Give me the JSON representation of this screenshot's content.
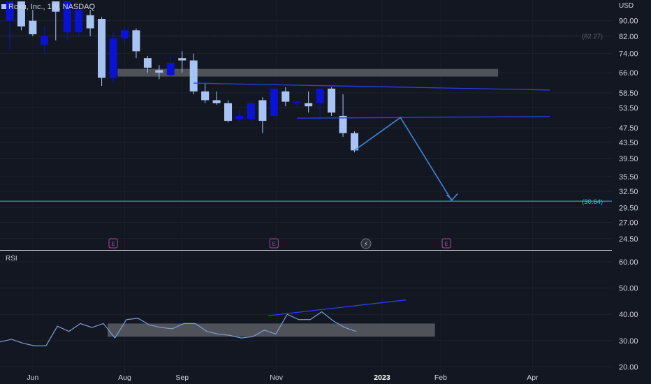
{
  "header": {
    "symbol_line": "Roku, Inc., 1W, NASDAQ",
    "currency": "USD"
  },
  "rsi_panel": {
    "title": "RSI"
  },
  "colors": {
    "background": "#131722",
    "up": "#a8c4f5",
    "down": "#0a12d6",
    "trendline": "#2a3ff5",
    "projection": "#3d86d6",
    "target": "#26c6da",
    "zone": "#5b5d63",
    "rsi_line": "#7e9fd8",
    "earnings": "#c2409f"
  },
  "chart_data": [
    {
      "type": "candlestick",
      "title": "Roku, Inc., 1W, NASDAQ",
      "ylabel": "USD",
      "ylim": [
        23,
        101
      ],
      "y_scale": "log",
      "y_ticks": [
        "90.00",
        "82.00",
        "74.00",
        "66.00",
        "58.50",
        "53.50",
        "47.50",
        "43.50",
        "39.50",
        "35.50",
        "32.50",
        "29.50",
        "27.00",
        "24.50"
      ],
      "x_ticks": [
        "Jun",
        "Aug",
        "Sep",
        "Nov",
        "2023",
        "Feb",
        "Apr"
      ],
      "price_labels": {
        "previous_close": "(82.27)",
        "target": "(30.64)"
      },
      "candles": [
        {
          "o": 90.0,
          "h": 101.0,
          "l": 76.0,
          "c": 101.0,
          "dir": "down"
        },
        {
          "o": 87.0,
          "h": 101.0,
          "l": 85.0,
          "c": 101.0,
          "dir": "up"
        },
        {
          "o": 83.0,
          "h": 96.0,
          "l": 82.0,
          "c": 90.0,
          "dir": "up"
        },
        {
          "o": 82.0,
          "h": 87.0,
          "l": 74.0,
          "c": 78.0,
          "dir": "down"
        },
        {
          "o": 95.0,
          "h": 101.0,
          "l": 80.0,
          "c": 101.0,
          "dir": "up"
        },
        {
          "o": 84.0,
          "h": 101.0,
          "l": 80.0,
          "c": 101.0,
          "dir": "down"
        },
        {
          "o": 84.0,
          "h": 98.0,
          "l": 82.0,
          "c": 96.0,
          "dir": "down"
        },
        {
          "o": 93.0,
          "h": 96.0,
          "l": 82.0,
          "c": 86.0,
          "dir": "up"
        },
        {
          "o": 91.0,
          "h": 92.0,
          "l": 61.0,
          "c": 64.0,
          "dir": "up"
        },
        {
          "o": 64.0,
          "h": 84.0,
          "l": 62.0,
          "c": 81.0,
          "dir": "down"
        },
        {
          "o": 81.0,
          "h": 87.0,
          "l": 79.0,
          "c": 85.0,
          "dir": "down"
        },
        {
          "o": 85.0,
          "h": 86.0,
          "l": 72.0,
          "c": 75.0,
          "dir": "up"
        },
        {
          "o": 72.0,
          "h": 73.0,
          "l": 66.0,
          "c": 68.0,
          "dir": "up"
        },
        {
          "o": 66.0,
          "h": 69.0,
          "l": 63.5,
          "c": 67.0,
          "dir": "up"
        },
        {
          "o": 65.0,
          "h": 73.0,
          "l": 64.0,
          "c": 70.0,
          "dir": "down"
        },
        {
          "o": 71.0,
          "h": 75.0,
          "l": 66.0,
          "c": 72.0,
          "dir": "up"
        },
        {
          "o": 71.0,
          "h": 74.0,
          "l": 58.0,
          "c": 59.0,
          "dir": "up"
        },
        {
          "o": 59.0,
          "h": 62.0,
          "l": 55.0,
          "c": 56.0,
          "dir": "up"
        },
        {
          "o": 56.0,
          "h": 59.0,
          "l": 54.5,
          "c": 55.0,
          "dir": "up"
        },
        {
          "o": 55.0,
          "h": 56.0,
          "l": 49.0,
          "c": 49.5,
          "dir": "up"
        },
        {
          "o": 50.0,
          "h": 53.0,
          "l": 49.0,
          "c": 51.0,
          "dir": "down"
        },
        {
          "o": 50.0,
          "h": 56.0,
          "l": 49.0,
          "c": 55.0,
          "dir": "down"
        },
        {
          "o": 56.0,
          "h": 57.0,
          "l": 46.0,
          "c": 49.5,
          "dir": "up"
        },
        {
          "o": 51.0,
          "h": 60.5,
          "l": 50.0,
          "c": 60.0,
          "dir": "down"
        },
        {
          "o": 59.0,
          "h": 60.5,
          "l": 54.0,
          "c": 55.5,
          "dir": "up"
        },
        {
          "o": 55.0,
          "h": 56.0,
          "l": 54.0,
          "c": 55.5,
          "dir": "down"
        },
        {
          "o": 55.0,
          "h": 59.0,
          "l": 52.0,
          "c": 54.0,
          "dir": "up"
        },
        {
          "o": 55.0,
          "h": 60.0,
          "l": 50.0,
          "c": 60.0,
          "dir": "down"
        },
        {
          "o": 60.0,
          "h": 60.5,
          "l": 51.0,
          "c": 52.0,
          "dir": "up"
        },
        {
          "o": 51.0,
          "h": 58.0,
          "l": 45.0,
          "c": 46.0,
          "dir": "up"
        },
        {
          "o": 46.0,
          "h": 46.5,
          "l": 41.0,
          "c": 41.5,
          "dir": "up"
        }
      ],
      "resistance_zone": [
        64.5,
        67.5
      ],
      "channel_upper": [
        [
          16,
          62.0
        ],
        [
          47,
          59.5
        ]
      ],
      "channel_lower": [
        [
          25,
          50.3
        ],
        [
          47,
          50.8
        ]
      ],
      "projection_path": [
        [
          30,
          41.5
        ],
        [
          34,
          50.5
        ],
        [
          38.5,
          30.64
        ]
      ],
      "target_level": 30.64,
      "earnings_markers": [
        9,
        23,
        38
      ],
      "event_markers": [
        31
      ]
    },
    {
      "type": "line",
      "title": "RSI",
      "ylim": [
        14,
        64
      ],
      "y_ticks": [
        "60.00",
        "50.00",
        "40.00",
        "30.00",
        "20.00"
      ],
      "values": [
        29.5,
        30.5,
        29,
        28,
        28,
        35.5,
        33.5,
        36.5,
        35,
        36.5,
        31,
        38,
        38.5,
        36,
        35,
        34.5,
        36.5,
        36.5,
        33.5,
        32.5,
        32,
        31,
        31.5,
        34,
        32.5,
        40,
        38,
        38,
        41,
        37.5,
        35,
        33.5
      ],
      "support_zone": [
        31.5,
        36.5
      ],
      "divergence_line": [
        [
          22.5,
          39.5
        ],
        [
          34.5,
          45.5
        ]
      ]
    }
  ]
}
